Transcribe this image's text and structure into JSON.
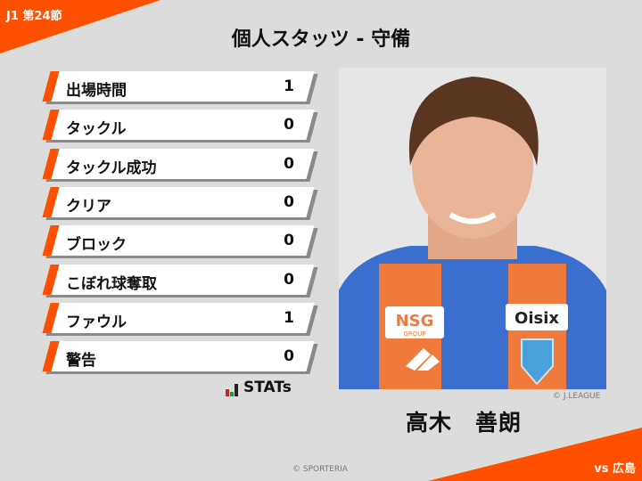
{
  "header": {
    "round": "J1 第24節",
    "title": "個人スタッツ - 守備",
    "opponent": "vs 広島"
  },
  "stats": [
    {
      "label": "出場時間",
      "value": "1"
    },
    {
      "label": "タックル",
      "value": "0"
    },
    {
      "label": "タックル成功",
      "value": "0"
    },
    {
      "label": "クリア",
      "value": "0"
    },
    {
      "label": "ブロック",
      "value": "0"
    },
    {
      "label": "こぼれ球奪取",
      "value": "0"
    },
    {
      "label": "ファウル",
      "value": "1"
    },
    {
      "label": "警告",
      "value": "0"
    }
  ],
  "brand": {
    "stats_logo": "STATs"
  },
  "player": {
    "name": "高木　善朗",
    "photo_credit": "© J.LEAGUE",
    "sponsor1": "NSG",
    "sponsor1_sub": "GROUP",
    "sponsor2": "Oisix"
  },
  "footer": {
    "credit": "© SPORTERIA"
  },
  "colors": {
    "accent": "#ff5000",
    "background": "#dcdcdc"
  }
}
